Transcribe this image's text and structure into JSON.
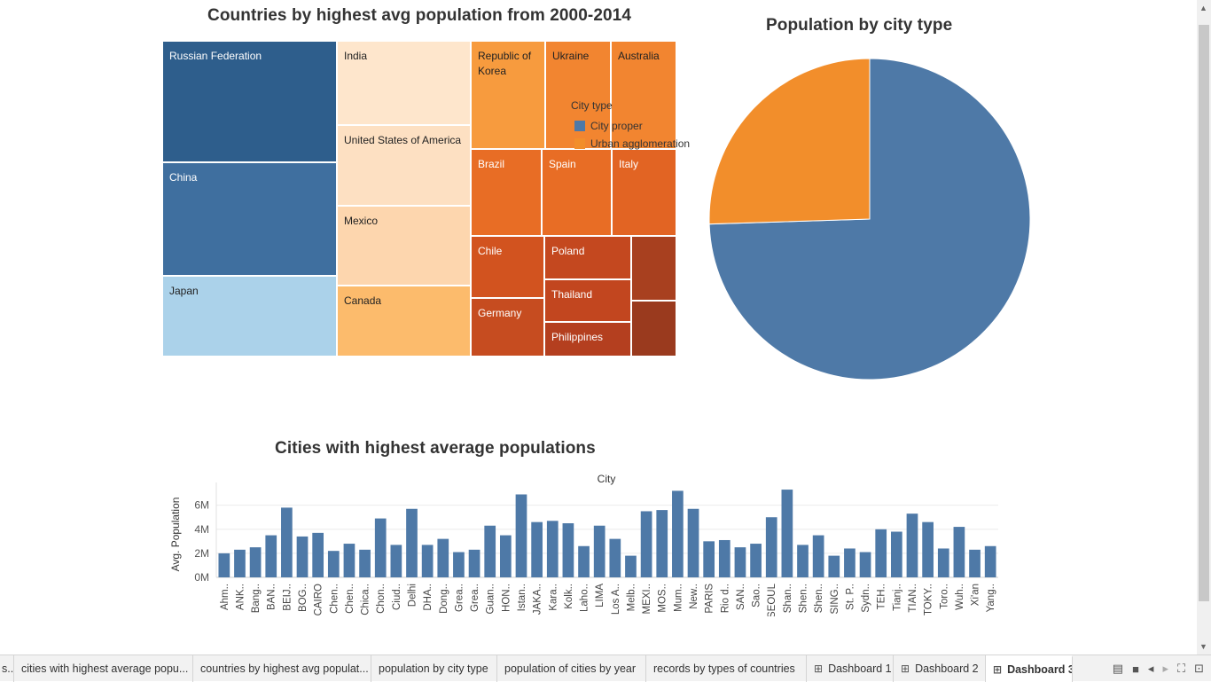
{
  "treemap": {
    "title": "Countries by highest avg population from 2000-2014",
    "cells": [
      {
        "label": "Russian Federation",
        "color": "#2e5e8c",
        "text": "#ffffff"
      },
      {
        "label": "China",
        "color": "#3f6f9f",
        "text": "#ffffff"
      },
      {
        "label": "Japan",
        "color": "#abd2ea",
        "text": "#222222"
      },
      {
        "label": "India",
        "color": "#fee6cc",
        "text": "#222222"
      },
      {
        "label": "United States of America",
        "color": "#fde0c2",
        "text": "#222222"
      },
      {
        "label": "Mexico",
        "color": "#fdd6ae",
        "text": "#222222"
      },
      {
        "label": "Canada",
        "color": "#fcbb6c",
        "text": "#222222"
      },
      {
        "label": "Republic of Korea",
        "color": "#f79b3e",
        "text": "#222222"
      },
      {
        "label": "Ukraine",
        "color": "#f28530",
        "text": "#222222"
      },
      {
        "label": "Australia",
        "color": "#f28530",
        "text": "#222222"
      },
      {
        "label": "Brazil",
        "color": "#e86d25",
        "text": "#ffffff"
      },
      {
        "label": "Spain",
        "color": "#e86d25",
        "text": "#ffffff"
      },
      {
        "label": "Italy",
        "color": "#e26423",
        "text": "#ffffff"
      },
      {
        "label": "Chile",
        "color": "#d2531f",
        "text": "#ffffff"
      },
      {
        "label": "Poland",
        "color": "#c4481f",
        "text": "#ffffff"
      },
      {
        "label": "Thailand",
        "color": "#c2461f",
        "text": "#ffffff"
      },
      {
        "label": "Germany",
        "color": "#c64c20",
        "text": "#ffffff"
      },
      {
        "label": "Philippines",
        "color": "#b43f1f",
        "text": "#ffffff"
      },
      {
        "label": "",
        "color": "#a8401f",
        "text": "#ffffff"
      },
      {
        "label": "",
        "color": "#9a3a1e",
        "text": "#ffffff"
      }
    ],
    "legend": {
      "title": "City type",
      "items": [
        {
          "label": "City proper",
          "color": "#4e79a7"
        },
        {
          "label": "Urban agglomeration",
          "color": "#f28e2b"
        }
      ]
    }
  },
  "pie": {
    "title": "Population by city type",
    "chart_data": {
      "type": "pie",
      "slices": [
        {
          "name": "City proper",
          "value": 74.5,
          "color": "#4e79a7"
        },
        {
          "name": "Urban agglomeration",
          "value": 25.5,
          "color": "#f28e2b"
        }
      ]
    }
  },
  "bar": {
    "title": "Cities with highest average populations",
    "chart_data": {
      "type": "bar",
      "xlabel": "City",
      "ylabel": "Avg. Population",
      "yticks": [
        "0M",
        "2M",
        "4M",
        "6M"
      ],
      "ylim": [
        0,
        7.6
      ],
      "color": "#4e79a7",
      "categories": [
        "Ahm..",
        "ANK..",
        "Bang..",
        "BAN..",
        "BEIJ..",
        "BOG..",
        "CAIRO",
        "Chen..",
        "Chen..",
        "Chica..",
        "Chon..",
        "Ciud..",
        "Delhi",
        "DHA..",
        "Dong..",
        "Grea..",
        "Grea..",
        "Guan..",
        "HON..",
        "Istan..",
        "JAKA..",
        "Kara..",
        "Kolk..",
        "Laho..",
        "LIMA",
        "Los A..",
        "Melb..",
        "MEXI..",
        "MOS..",
        "Mum..",
        "New..",
        "PARIS",
        "Rio d..",
        "SAN..",
        "Sao..",
        "SEOUL",
        "Shan..",
        "Shen..",
        "Shen..",
        "SING..",
        "St. P..",
        "Sydn..",
        "TEH..",
        "Tianj..",
        "TIAN..",
        "TOKY..",
        "Toro..",
        "Wuh..",
        "Xi'an",
        "Yang.."
      ],
      "values": [
        2.0,
        2.3,
        2.5,
        3.5,
        5.8,
        3.4,
        3.7,
        2.2,
        2.8,
        2.3,
        4.9,
        2.7,
        5.7,
        2.7,
        3.2,
        2.1,
        2.3,
        4.3,
        3.5,
        6.9,
        4.6,
        4.7,
        4.5,
        2.6,
        4.3,
        3.2,
        1.8,
        5.5,
        5.6,
        7.2,
        5.7,
        3.0,
        3.1,
        2.5,
        2.8,
        5.0,
        7.3,
        2.7,
        3.5,
        1.8,
        2.4,
        2.1,
        4.0,
        3.8,
        5.3,
        4.6,
        2.4,
        4.2,
        2.3,
        2.6
      ]
    }
  },
  "tabs": [
    {
      "label": "s...",
      "icon": ""
    },
    {
      "label": "cities with highest average popu...",
      "icon": ""
    },
    {
      "label": "countries by highest avg populat...",
      "icon": ""
    },
    {
      "label": "population by city type",
      "icon": ""
    },
    {
      "label": "population of cities by year",
      "icon": ""
    },
    {
      "label": "records by types of countries",
      "icon": ""
    },
    {
      "label": "Dashboard 1",
      "icon": "dashboard-icon"
    },
    {
      "label": "Dashboard 2",
      "icon": "dashboard-icon"
    },
    {
      "label": "Dashboard 3",
      "icon": "dashboard-icon"
    }
  ]
}
